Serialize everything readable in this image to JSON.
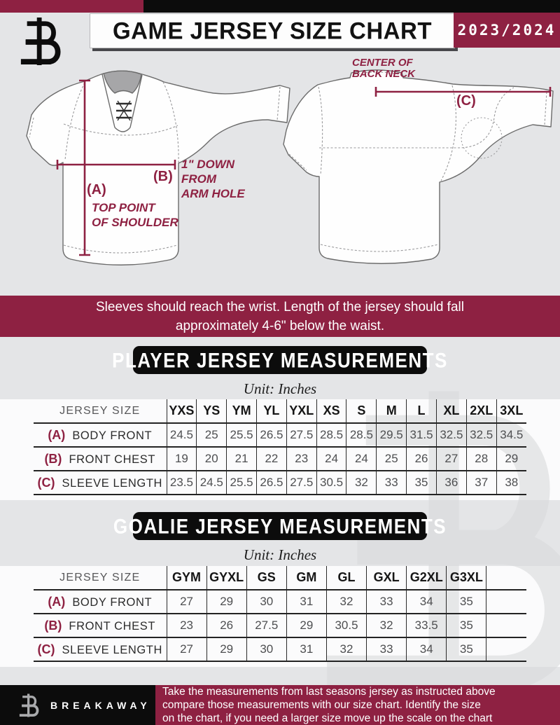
{
  "header": {
    "title": "GAME JERSEY SIZE CHART",
    "season": "2023/2024"
  },
  "diagram": {
    "front": {
      "a_key": "(A)",
      "a_caption": [
        "TOP POINT",
        "OF SHOULDER"
      ],
      "b_key": "(B)",
      "b_caption": [
        "1\" DOWN",
        "FROM",
        "ARM HOLE"
      ]
    },
    "back": {
      "c_key": "(C)",
      "caption": [
        "CENTER OF",
        "BACK NECK"
      ]
    }
  },
  "banner": {
    "line1": "Sleeves should reach the wrist. Length of the jersey should fall",
    "line2": "approximately 4-6\" below the waist."
  },
  "player_section": {
    "heading": "PLAYER JERSEY MEASUREMENTS",
    "unit": "Unit: Inches",
    "table": {
      "corner_label": "JERSEY SIZE",
      "sizes": [
        "YXS",
        "YS",
        "YM",
        "YL",
        "YXL",
        "XS",
        "S",
        "M",
        "L",
        "XL",
        "2XL",
        "3XL"
      ],
      "rows": [
        {
          "key": "(A)",
          "label": "BODY FRONT",
          "values": [
            "24.5",
            "25",
            "25.5",
            "26.5",
            "27.5",
            "28.5",
            "28.5",
            "29.5",
            "31.5",
            "32.5",
            "32.5",
            "34.5"
          ]
        },
        {
          "key": "(B)",
          "label": "FRONT CHEST",
          "values": [
            "19",
            "20",
            "21",
            "22",
            "23",
            "24",
            "24",
            "25",
            "26",
            "27",
            "28",
            "29"
          ]
        },
        {
          "key": "(C)",
          "label": "SLEEVE LENGTH",
          "values": [
            "23.5",
            "24.5",
            "25.5",
            "26.5",
            "27.5",
            "30.5",
            "32",
            "33",
            "35",
            "36",
            "37",
            "38"
          ]
        }
      ]
    }
  },
  "goalie_section": {
    "heading": "GOALIE JERSEY MEASUREMENTS",
    "unit": "Unit: Inches",
    "table": {
      "corner_label": "JERSEY SIZE",
      "sizes": [
        "GYM",
        "GYXL",
        "GS",
        "GM",
        "GL",
        "GXL",
        "G2XL",
        "G3XL",
        ""
      ],
      "rows": [
        {
          "key": "(A)",
          "label": "BODY FRONT",
          "values": [
            "27",
            "29",
            "30",
            "31",
            "32",
            "33",
            "34",
            "35",
            ""
          ]
        },
        {
          "key": "(B)",
          "label": "FRONT CHEST",
          "values": [
            "23",
            "26",
            "27.5",
            "29",
            "30.5",
            "32",
            "33.5",
            "35",
            ""
          ]
        },
        {
          "key": "(C)",
          "label": "SLEEVE LENGTH",
          "values": [
            "27",
            "29",
            "30",
            "31",
            "32",
            "33",
            "34",
            "35",
            ""
          ]
        }
      ]
    }
  },
  "footer": {
    "brand": "BREAKAWAY",
    "note_lines": [
      "Take the measurements from last seasons jersey as instructed above",
      "compare those measurements  with our size chart. Identify the size",
      "on the chart, if you need a larger size move up the scale on the chart"
    ]
  },
  "colors": {
    "maroon": "#8e2142",
    "black": "#0c0c0c",
    "background": "#e4e5e7"
  }
}
